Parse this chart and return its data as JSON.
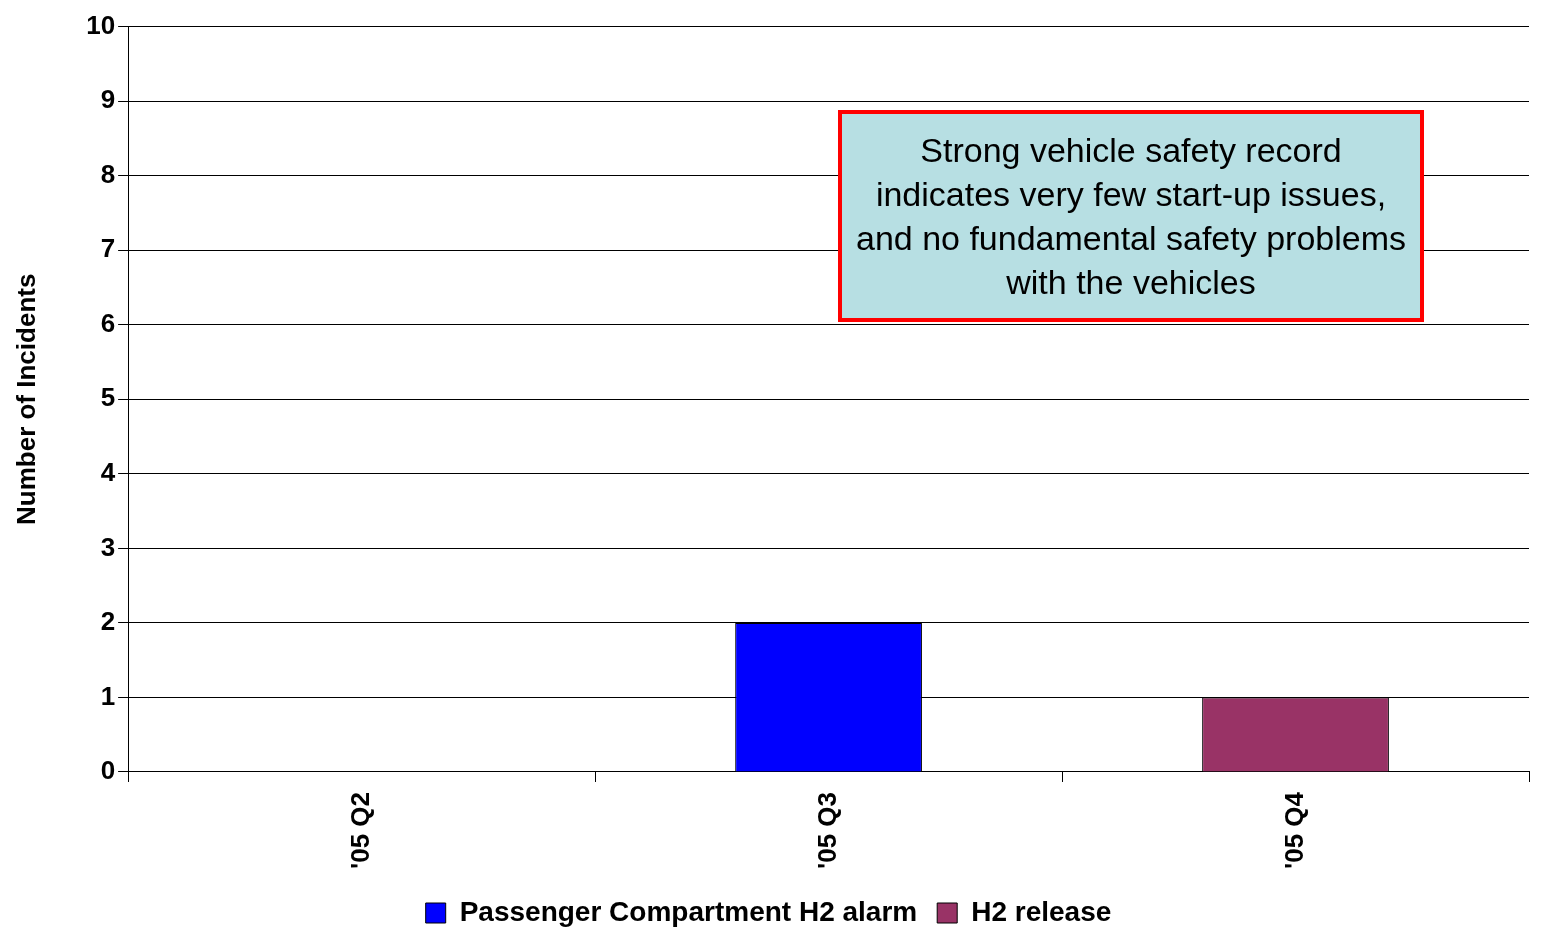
{
  "chart_data": {
    "type": "bar",
    "stacked": true,
    "ylabel": "Number of Incidents",
    "categories": [
      "'05 Q2",
      "'05 Q3",
      "'05 Q4"
    ],
    "series": [
      {
        "name": "Passenger Compartment H2 alarm",
        "color": "#0000ff",
        "values": [
          0,
          2,
          0
        ]
      },
      {
        "name": "H2 release",
        "color": "#993366",
        "values": [
          0,
          0,
          1
        ]
      }
    ],
    "ylim": [
      0,
      10
    ],
    "yticks": [
      0,
      1,
      2,
      3,
      4,
      5,
      6,
      7,
      8,
      9,
      10
    ],
    "grid": "y",
    "legend": "bottom",
    "annotations": [
      "Strong vehicle safety record indicates very few start-up issues, and no fundamental safety problems with the vehicles"
    ]
  }
}
